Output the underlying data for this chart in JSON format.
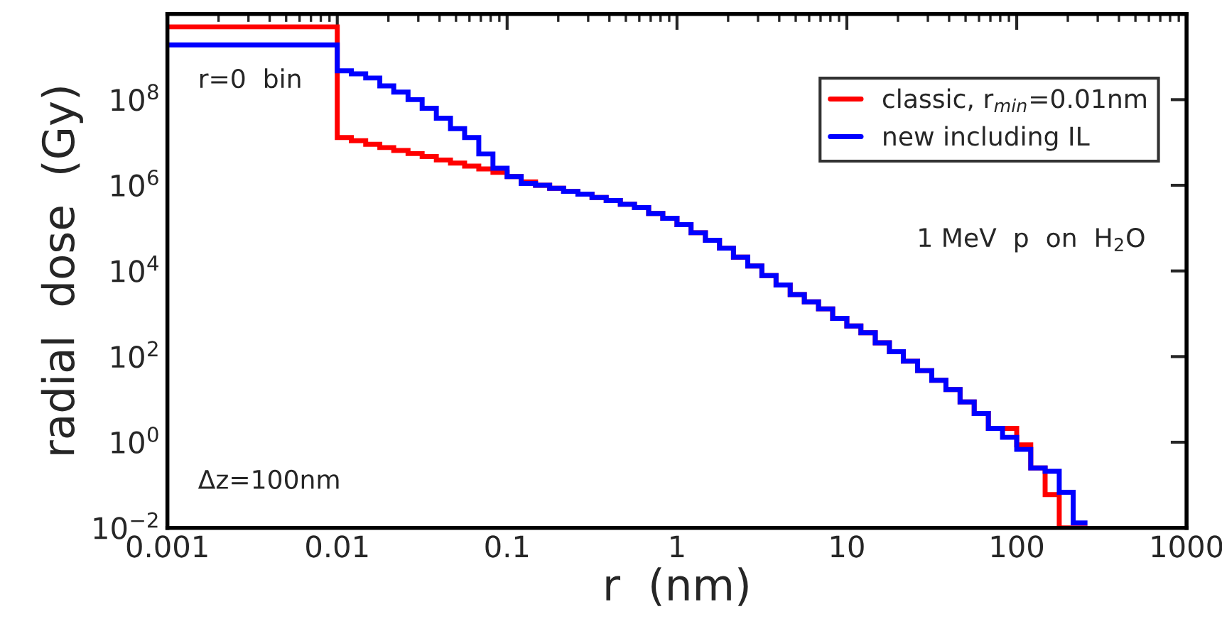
{
  "chart_data": {
    "type": "histogram",
    "xlabel": "r  (nm)",
    "ylabel": "radial  dose  (Gy)",
    "log": "xy",
    "xlim": [
      0.001,
      1000
    ],
    "ylim": [
      0.01,
      10000000000
    ],
    "xticks": [
      0.001,
      0.01,
      0.1,
      1,
      10,
      100,
      1000
    ],
    "yticks": [
      {
        "value": 0.01,
        "label": "10$^{−2}$"
      },
      {
        "value": 1,
        "label": "10$^{0}$"
      },
      {
        "value": 100,
        "label": "10$^{2}$"
      },
      {
        "value": 10000,
        "label": "10$^{4}$"
      },
      {
        "value": 1000000,
        "label": "10$^{6}$"
      },
      {
        "value": 100000000,
        "label": "10$^{8}$"
      }
    ],
    "grid": false,
    "legend": "top right",
    "annotations": [
      "r=0  bin",
      "1 MeV  p  on  H$_{2}$O",
      "Δz=100nm"
    ],
    "bins": [
      0.001,
      0.01,
      0.0121,
      0.0147,
      0.0178,
      0.0215,
      0.0261,
      0.0316,
      0.0383,
      0.0464,
      0.0562,
      0.0681,
      0.0825,
      0.1,
      0.121,
      0.147,
      0.178,
      0.215,
      0.261,
      0.316,
      0.383,
      0.464,
      0.562,
      0.681,
      0.825,
      1,
      1.21,
      1.47,
      1.78,
      2.15,
      2.61,
      3.16,
      3.83,
      4.64,
      5.62,
      6.81,
      8.25,
      10,
      12.1,
      14.7,
      17.8,
      21.5,
      26.1,
      31.6,
      38.3,
      46.4,
      56.2,
      68.1,
      82.5,
      100,
      121,
      147,
      178,
      215,
      261
    ],
    "series": [
      {
        "name": "classic, r$_{min}$=0.01nm",
        "color": "#ff0000",
        "values": [
          5000000000,
          13000000,
          11000000,
          9100000,
          7600000,
          6500000,
          5500000,
          4700000,
          3900000,
          3300000,
          2800000,
          2400000,
          2000000,
          1600000,
          1200000,
          1000000,
          850000,
          720000,
          620000,
          520000,
          440000,
          360000,
          300000,
          220000,
          170000,
          120000,
          78000,
          52000,
          34000,
          21000,
          13000,
          7800,
          4700,
          2800,
          1900,
          1300,
          780,
          520,
          360,
          210,
          130,
          78,
          47,
          28,
          17,
          8.7,
          4.7,
          2.1,
          2.1,
          0.87,
          0.25,
          0.06,
          0.01,
          0.01
        ]
      },
      {
        "name": "new including IL",
        "color": "#0000ff",
        "values": [
          1900000000,
          470000000,
          400000000,
          320000000,
          210000000,
          150000000,
          100000000,
          63000000,
          37000000,
          21000000,
          13000000,
          5400000,
          2500000,
          1600000,
          1100000,
          1000000,
          850000,
          720000,
          620000,
          520000,
          440000,
          360000,
          300000,
          220000,
          170000,
          120000,
          78000,
          52000,
          34000,
          21000,
          13000,
          7800,
          4700,
          2800,
          1900,
          1300,
          780,
          520,
          360,
          210,
          130,
          78,
          47,
          28,
          17,
          8.7,
          4.7,
          2.1,
          1.3,
          0.68,
          0.25,
          0.21,
          0.068,
          0.013
        ]
      }
    ]
  }
}
